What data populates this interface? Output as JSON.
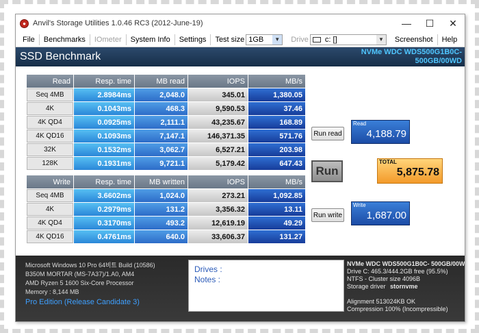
{
  "window": {
    "title": "Anvil's Storage Utilities 1.0.46 RC3 (2012-June-19)",
    "minimize": "—",
    "maximize": "☐",
    "close": "✕"
  },
  "menu": {
    "file": "File",
    "benchmarks": "Benchmarks",
    "iometer": "IOmeter",
    "system_info": "System Info",
    "settings": "Settings",
    "test_size_label": "Test size",
    "test_size_value": "1GB",
    "drive_label": "Drive",
    "drive_value": "c: []",
    "screenshot": "Screenshot",
    "help": "Help"
  },
  "header": {
    "title": "SSD Benchmark",
    "drive_line1": "NVMe WDC WDS500G1B0C-",
    "drive_line2": "500GB/00WD"
  },
  "read_table": {
    "headers": [
      "Read",
      "Resp. time",
      "MB read",
      "IOPS",
      "MB/s"
    ],
    "rows": [
      [
        "Seq 4MB",
        "2.8984ms",
        "2,048.0",
        "345.01",
        "1,380.05"
      ],
      [
        "4K",
        "0.1043ms",
        "468.3",
        "9,590.53",
        "37.46"
      ],
      [
        "4K QD4",
        "0.0925ms",
        "2,111.1",
        "43,235.67",
        "168.89"
      ],
      [
        "4K QD16",
        "0.1093ms",
        "7,147.1",
        "146,371.35",
        "571.76"
      ],
      [
        "32K",
        "0.1532ms",
        "3,062.7",
        "6,527.21",
        "203.98"
      ],
      [
        "128K",
        "0.1931ms",
        "9,721.1",
        "5,179.42",
        "647.43"
      ]
    ]
  },
  "write_table": {
    "headers": [
      "Write",
      "Resp. time",
      "MB written",
      "IOPS",
      "MB/s"
    ],
    "rows": [
      [
        "Seq 4MB",
        "3.6602ms",
        "1,024.0",
        "273.21",
        "1,092.85"
      ],
      [
        "4K",
        "0.2979ms",
        "131.2",
        "3,356.32",
        "13.11"
      ],
      [
        "4K QD4",
        "0.3170ms",
        "493.2",
        "12,619.19",
        "49.29"
      ],
      [
        "4K QD16",
        "0.4761ms",
        "640.0",
        "33,606.37",
        "131.27"
      ]
    ]
  },
  "actions": {
    "run_read": "Run read",
    "run": "Run",
    "run_write": "Run write"
  },
  "scores": {
    "read_caption": "Read",
    "read_value": "4,188.79",
    "total_caption": "TOTAL",
    "total_value": "5,875.78",
    "write_caption": "Write",
    "write_value": "1,687.00"
  },
  "system": {
    "os": "Microsoft Windows 10 Pro 64비트 Build (10586)",
    "board": "B350M MORTAR (MS-7A37)/1.A0, AM4",
    "cpu": "AMD Ryzen 5 1600 Six-Core Processor",
    "memory": "Memory : 8,144 MB",
    "edition": "Pro Edition (Release Candidate 3)"
  },
  "notes": {
    "drives": "Drives :",
    "notes": "Notes :"
  },
  "drive_info": {
    "model": "NVMe WDC WDS500G1B0C- 500GB/00W",
    "free": "Drive C: 465.3/444.2GB free (95.5%)",
    "ntfs": "NTFS - Cluster size 4096B",
    "storage_driver_label": "Storage driver",
    "storage_driver_value": "stornvme",
    "alignment": "Alignment 513024KB OK",
    "compression": "Compression 100% (Incompressible)"
  }
}
